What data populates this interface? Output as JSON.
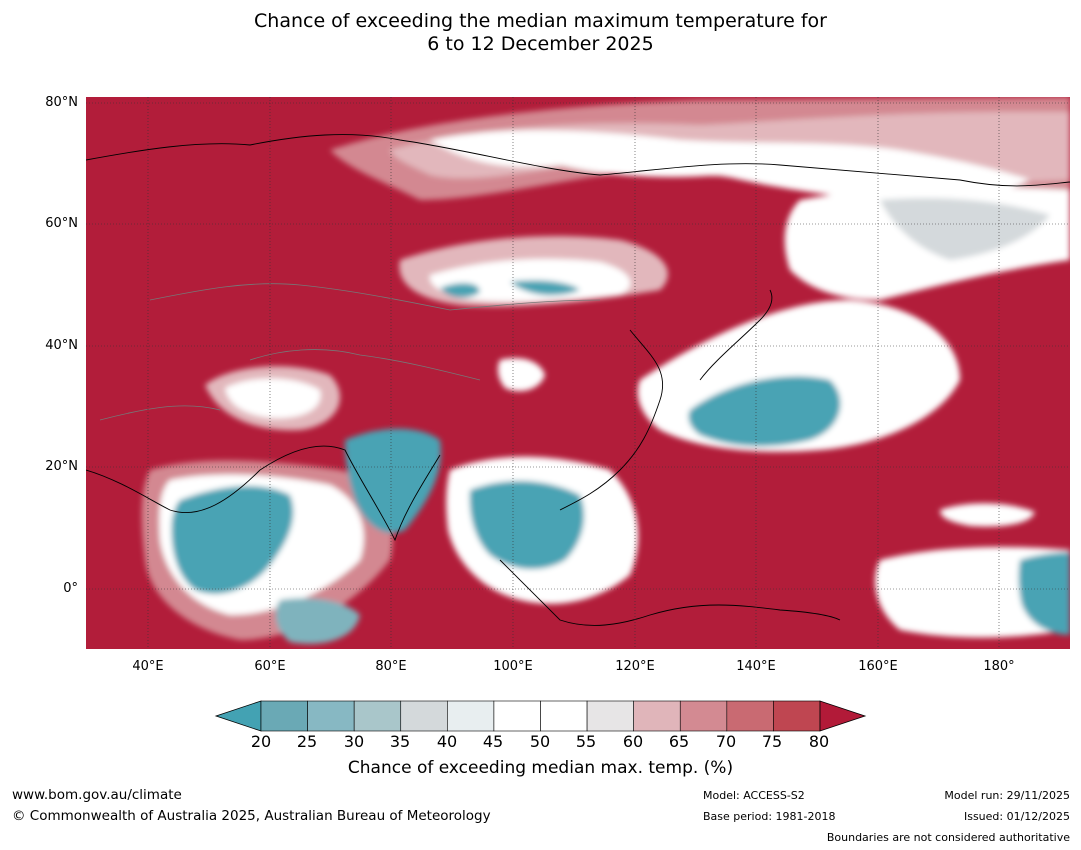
{
  "title": {
    "line1": "Chance of exceeding the median maximum temperature for",
    "line2": "6 to 12 December 2025"
  },
  "map": {
    "lat_labels": [
      "80°N",
      "60°N",
      "40°N",
      "20°N",
      "0°"
    ],
    "lon_labels": [
      "40°E",
      "60°E",
      "80°E",
      "100°E",
      "120°E",
      "140°E",
      "160°E",
      "180°"
    ],
    "colors": {
      "ocean_high": "#b21d3a",
      "white": "#ffffff",
      "teal": "#49a3b4",
      "pink": "#d38891",
      "light_pink": "#e2b7bc",
      "grey": "#d4d9dc"
    }
  },
  "colorbar": {
    "ticks": [
      "20",
      "25",
      "30",
      "35",
      "40",
      "45",
      "50",
      "55",
      "60",
      "65",
      "70",
      "75",
      "80"
    ],
    "colors": [
      "#43a2b3",
      "#6aa9b5",
      "#87b8c3",
      "#a9c6ca",
      "#d4d9db",
      "#e8eef0",
      "#ffffff",
      "#ffffff",
      "#e7e5e6",
      "#e0b5ba",
      "#d38a92",
      "#c96a72",
      "#bf4651",
      "#b21a38"
    ],
    "title": "Chance of exceeding median max. temp. (%)"
  },
  "footer": {
    "url": "www.bom.gov.au/climate",
    "copyright": "© Commonwealth of Australia 2025, Australian Bureau of Meteorology",
    "model": "Model: ACCESS-S2",
    "base_period": "Base period: 1981-2018",
    "model_run": "Model run: 29/11/2025",
    "issued": "Issued: 01/12/2025",
    "disclaimer": "Boundaries are not considered authoritative"
  }
}
